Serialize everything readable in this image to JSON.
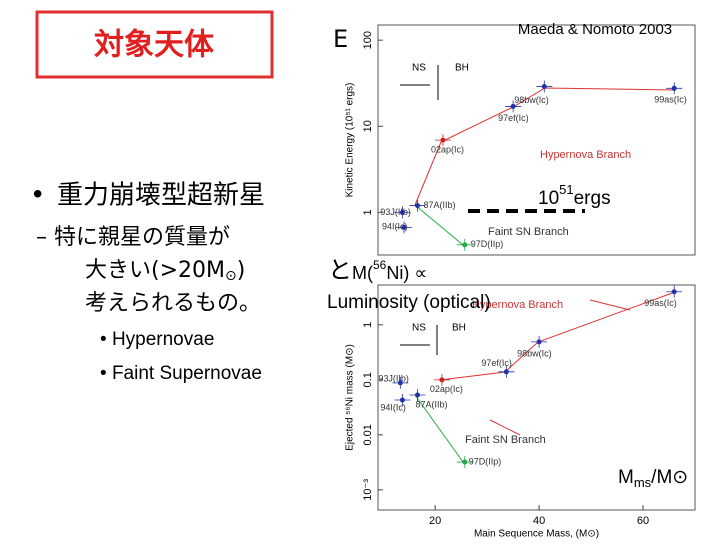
{
  "title_box": "対象天体",
  "hidden_heading": "E",
  "citation": "Maeda & Nomoto 2003",
  "bullet": "重力崩壊型超新星",
  "sub_bullet": {
    "line1": "– 特に親星の質量が",
    "line2_a": "大きい(>20M",
    "line2_sub": "⊙",
    "line2_b": ")",
    "line3": "考えられるもの。"
  },
  "relation": {
    "a": "と",
    "b": "M(",
    "sup": "56",
    "c": "Ni) ∝",
    "d": "Luminosity (optical)"
  },
  "energy_label": {
    "base": "10",
    "sup": "51",
    "unit": "ergs"
  },
  "mass_label": {
    "base": "M",
    "sub": "ms",
    "rest": "/M⊙"
  },
  "sub_sub_bullets": [
    "Hypernovae",
    "Faint Supernovae"
  ],
  "plots": {
    "top": {
      "type": "scatter",
      "ylabel": "Kinetic Energy (10⁵¹ ergs)",
      "log_y": true,
      "xlim": [
        9,
        70
      ],
      "ylim": [
        0.32,
        150
      ],
      "yticks": [
        1,
        10,
        100
      ],
      "annotations": [
        "NS",
        "BH",
        "Hypernova Branch",
        "Faint SN Branch"
      ],
      "points": [
        {
          "label": "98bw(Ic)",
          "x": 41,
          "y": 29,
          "color": "#2233aa"
        },
        {
          "label": "97ef(Ic)",
          "x": 35,
          "y": 17,
          "color": "#2233aa"
        },
        {
          "label": "99as(Ic)",
          "x": 66,
          "y": 27.6,
          "color": "#2233aa"
        },
        {
          "label": "02ap(Ic)",
          "x": 21.5,
          "y": 6.9,
          "color": "#cc2222"
        },
        {
          "label": "93J(IIb)",
          "x": 13.7,
          "y": 1,
          "color": "#2233aa"
        },
        {
          "label": "87A(IIb)",
          "x": 16.6,
          "y": 1.2,
          "color": "#2233aa"
        },
        {
          "label": "94I(Ic)",
          "x": 14,
          "y": 0.67,
          "color": "#2233aa"
        },
        {
          "label": "97D(IIp)",
          "x": 25.7,
          "y": 0.42,
          "color": "#22aa44"
        }
      ]
    },
    "bottom": {
      "type": "scatter",
      "ylabel": "Ejected ⁵⁶Ni mass (M⊙)",
      "xlabel": "Main Sequence Mass, (M⊙)",
      "log_y": true,
      "xlim": [
        9,
        70
      ],
      "ylim": [
        0.00043,
        5.3
      ],
      "xticks": [
        20,
        40,
        60
      ],
      "yticks": [
        {
          "value": 0.001,
          "label": "10⁻³"
        },
        0.01,
        0.1,
        1
      ],
      "annotations": [
        "NS",
        "BH",
        "Hypernova Branch",
        "Faint SN Branch"
      ],
      "points": [
        {
          "label": "99as(Ic)",
          "x": 66,
          "y": 4,
          "color": "#2233aa"
        },
        {
          "label": "98bw(Ic)",
          "x": 40,
          "y": 0.49,
          "color": "#2233aa"
        },
        {
          "label": "97ef(Ic)",
          "x": 33.7,
          "y": 0.14,
          "color": "#2233aa"
        },
        {
          "label": "02ap(Ic)",
          "x": 21.3,
          "y": 0.1,
          "color": "#cc2222"
        },
        {
          "label": "93J(IIb)",
          "x": 13.3,
          "y": 0.088,
          "color": "#2233aa"
        },
        {
          "label": "87A(IIb)",
          "x": 16.6,
          "y": 0.053,
          "color": "#2233aa"
        },
        {
          "label": "94I(Ic)",
          "x": 13.7,
          "y": 0.043,
          "color": "#2233aa"
        },
        {
          "label": "97D(IIp)",
          "x": 25.7,
          "y": 0.0032,
          "color": "#22aa44"
        }
      ]
    }
  }
}
